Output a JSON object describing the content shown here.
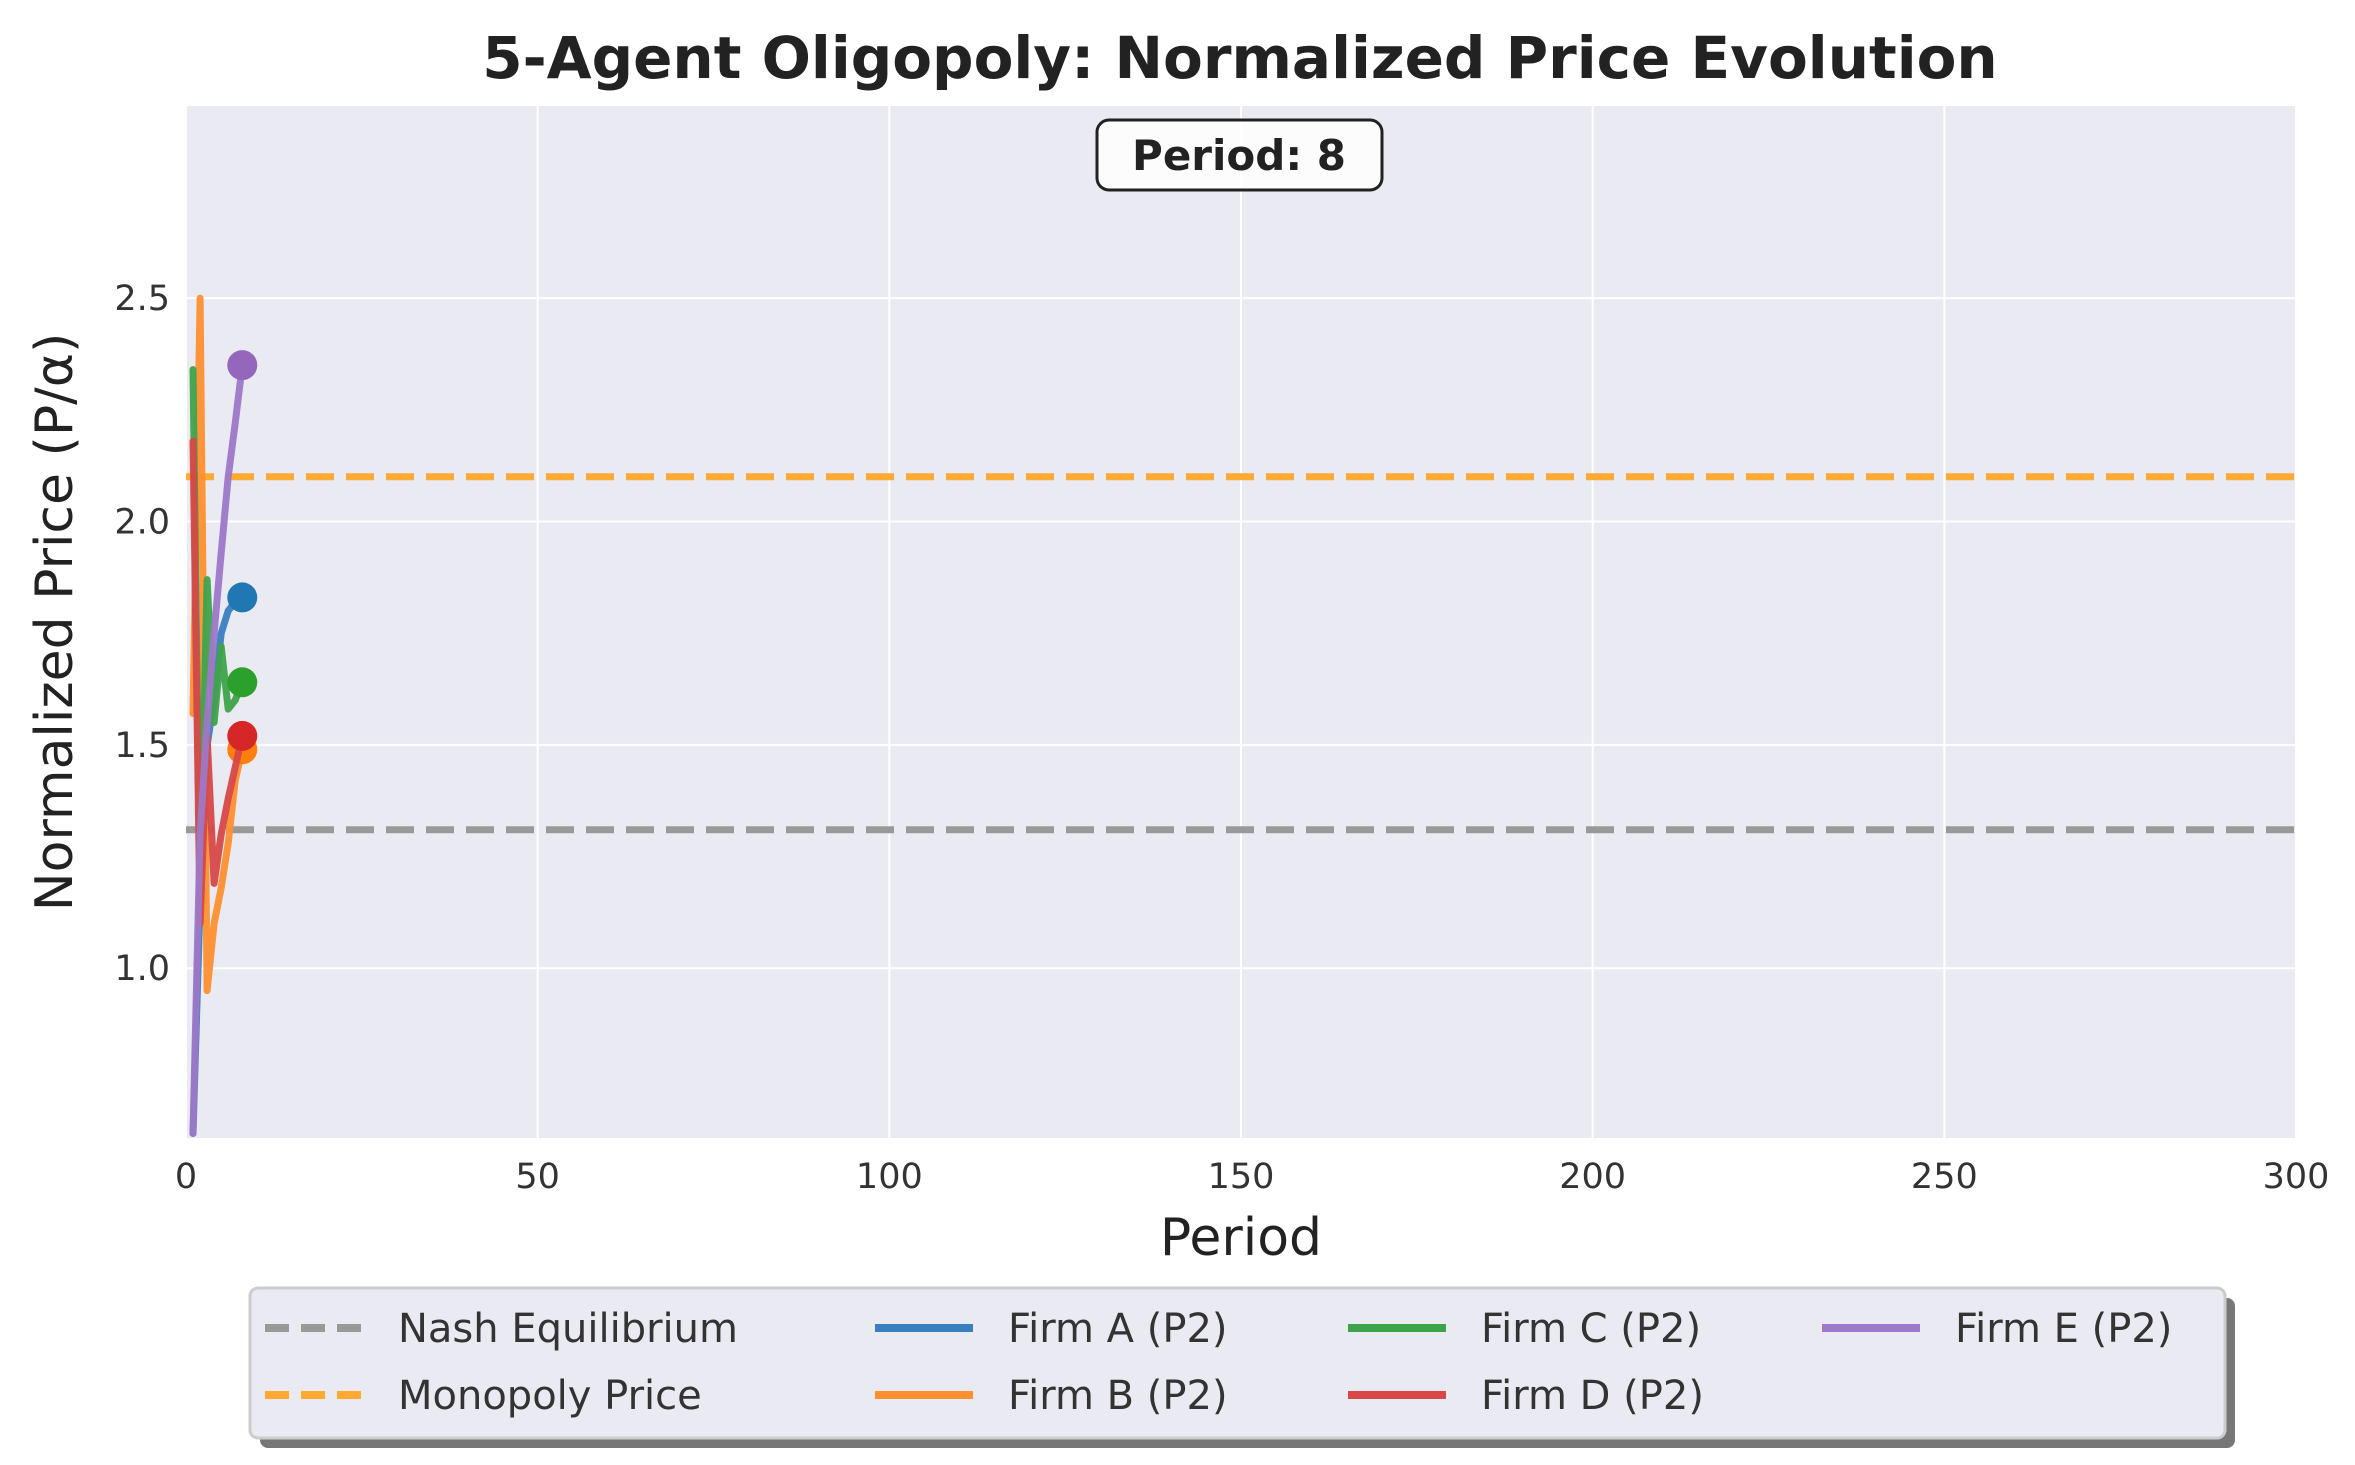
{
  "chart_data": {
    "type": "line",
    "title": "5-Agent Oligopoly: Normalized Price Evolution",
    "xlabel": "Period",
    "ylabel": "Normalized Price (P/α)",
    "xlim": [
      0,
      300
    ],
    "ylim": [
      0.62,
      2.93
    ],
    "xticks": [
      0,
      50,
      100,
      150,
      200,
      250,
      300
    ],
    "xtick_labels": [
      "0",
      "50",
      "100",
      "150",
      "200",
      "250",
      "300"
    ],
    "yticks": [
      1.0,
      1.5,
      2.0,
      2.5
    ],
    "ytick_labels": [
      "1.0",
      "1.5",
      "2.0",
      "2.5"
    ],
    "grid": true,
    "annotation": "Period: 8",
    "reference_lines": [
      {
        "name": "Nash Equilibrium",
        "y": 1.31,
        "color": "#999999",
        "style": "dashed"
      },
      {
        "name": "Monopoly Price",
        "y": 2.1,
        "color": "#ffaa33",
        "style": "dashed"
      }
    ],
    "series": [
      {
        "name": "Firm A (P2)",
        "color": "#3a80c0",
        "marker_color": "#1f77b4",
        "x": [
          1,
          2,
          3,
          4,
          5,
          6,
          7,
          8
        ],
        "y": [
          0.63,
          1.15,
          1.5,
          1.6,
          1.75,
          1.8,
          1.82,
          1.83
        ]
      },
      {
        "name": "Firm B (P2)",
        "color": "#ff9030",
        "marker_color": "#ff7f0e",
        "x": [
          1,
          2,
          3,
          4,
          5,
          6,
          7,
          8
        ],
        "y": [
          1.57,
          2.5,
          0.95,
          1.1,
          1.18,
          1.28,
          1.42,
          1.49
        ]
      },
      {
        "name": "Firm C (P2)",
        "color": "#3ea34a",
        "marker_color": "#2ca02c",
        "x": [
          1,
          2,
          3,
          4,
          5,
          6,
          7,
          8
        ],
        "y": [
          2.34,
          1.15,
          1.87,
          1.55,
          1.72,
          1.58,
          1.6,
          1.64
        ]
      },
      {
        "name": "Firm D (P2)",
        "color": "#d84848",
        "marker_color": "#d62728",
        "x": [
          1,
          2,
          3,
          4,
          5,
          6,
          7,
          8
        ],
        "y": [
          2.18,
          1.1,
          1.52,
          1.19,
          1.3,
          1.38,
          1.45,
          1.52
        ]
      },
      {
        "name": "Firm E (P2)",
        "color": "#9d78c8",
        "marker_color": "#9467bd",
        "x": [
          1,
          2,
          3,
          4,
          5,
          6,
          7,
          8
        ],
        "y": [
          0.63,
          1.3,
          1.55,
          1.75,
          1.93,
          2.1,
          2.22,
          2.35
        ]
      }
    ],
    "legend": {
      "placement": "bottom-center",
      "entries": [
        "Nash Equilibrium",
        "Monopoly Price",
        "Firm A (P2)",
        "Firm B (P2)",
        "Firm C (P2)",
        "Firm D (P2)",
        "Firm E (P2)"
      ]
    },
    "colors": {
      "plot_background": "#eaeaf2",
      "grid": "#ffffff"
    }
  }
}
